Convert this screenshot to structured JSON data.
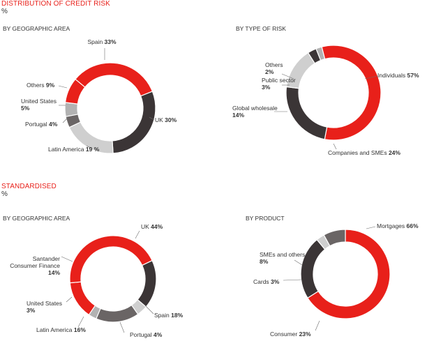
{
  "sections": [
    {
      "title": "DISTRIBUTION OF CREDIT RISK",
      "unit": "%"
    },
    {
      "title": "STANDARDISED",
      "unit": "%"
    }
  ],
  "colors": {
    "red": "#e8201a",
    "dark": "#3b3536",
    "mid": "#6a6565",
    "light": "#cfcfcf",
    "lighter": "#b2b2b2",
    "leader": "#6e6e6e"
  },
  "chart_data": [
    {
      "type": "pie",
      "variant": "donut",
      "subtitle": "BY GEOGRAPHIC AREA",
      "segments": [
        {
          "label": "Spain",
          "value": 33,
          "display": "33%",
          "color": "red"
        },
        {
          "label": "UK",
          "value": 30,
          "display": "30%",
          "color": "dark"
        },
        {
          "label": "Latin America",
          "value": 19,
          "display": "19 %",
          "color": "light"
        },
        {
          "label": "Portugal",
          "value": 4,
          "display": "4%",
          "color": "mid"
        },
        {
          "label": "United States",
          "value": 5,
          "display": "5%",
          "color": "lighter"
        },
        {
          "label": "Others",
          "value": 9,
          "display": "9%",
          "color": "red"
        }
      ]
    },
    {
      "type": "pie",
      "variant": "donut",
      "subtitle": "BY TYPE OF RISK",
      "segments": [
        {
          "label": "Individuals",
          "value": 57,
          "display": "57%",
          "color": "red"
        },
        {
          "label": "Companies and SMEs",
          "value": 24,
          "display": "24%",
          "color": "dark"
        },
        {
          "label": "Global wholesale",
          "value": 14,
          "display": "14%",
          "color": "light"
        },
        {
          "label": "Public sector",
          "value": 3,
          "display": "3%",
          "color": "dark"
        },
        {
          "label": "Others",
          "value": 2,
          "display": "2%",
          "color": "lighter"
        }
      ]
    },
    {
      "type": "pie",
      "variant": "donut",
      "subtitle": "BY GEOGRAPHIC AREA",
      "segments": [
        {
          "label": "Spain",
          "value": 18,
          "display": "18%",
          "color": "dark"
        },
        {
          "label": "Portugal",
          "value": 4,
          "display": "4%",
          "color": "light"
        },
        {
          "label": "Latin America",
          "value": 16,
          "display": "16%",
          "color": "mid"
        },
        {
          "label": "United States",
          "value": 3,
          "display": "3%",
          "color": "lighter"
        },
        {
          "label": "Santander Consumer Finance",
          "value": 14,
          "display": "14%",
          "color": "red"
        },
        {
          "label": "UK",
          "value": 44,
          "display": "44%",
          "color": "red"
        }
      ]
    },
    {
      "type": "pie",
      "variant": "donut",
      "subtitle": "BY PRODUCT",
      "segments": [
        {
          "label": "Mortgages",
          "value": 66,
          "display": "66%",
          "color": "red"
        },
        {
          "label": "Consumer",
          "value": 23,
          "display": "23%",
          "color": "dark"
        },
        {
          "label": "Cards",
          "value": 3,
          "display": "3%",
          "color": "light"
        },
        {
          "label": "SMEs and others",
          "value": 8,
          "display": "8%",
          "color": "mid"
        }
      ]
    }
  ]
}
